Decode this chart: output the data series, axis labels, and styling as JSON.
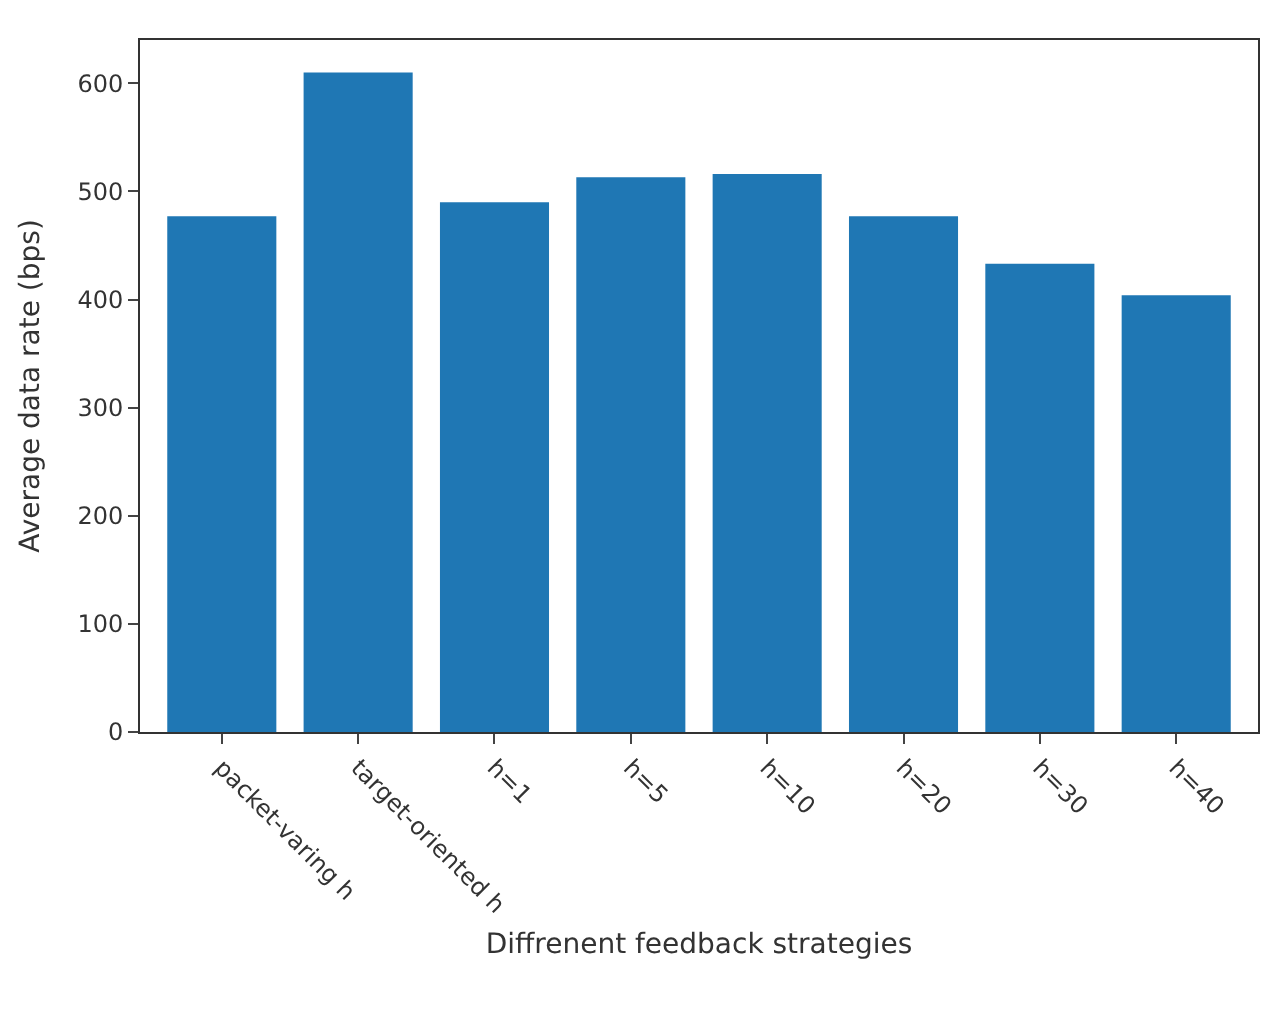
{
  "chart_data": {
    "type": "bar",
    "xlabel": "Diffrenent feedback strategies",
    "ylabel": "Average data rate (bps)",
    "categories": [
      "packet-varing h",
      "target-oriented h",
      "h=1",
      "h=5",
      "h=10",
      "h=20",
      "h=30",
      "h=40"
    ],
    "values": [
      477,
      610,
      490,
      513,
      516,
      477,
      433,
      404
    ],
    "color": "#1f77b4",
    "ylim": [
      0,
      640
    ],
    "yticks": [
      0,
      100,
      200,
      300,
      400,
      500,
      600
    ]
  }
}
